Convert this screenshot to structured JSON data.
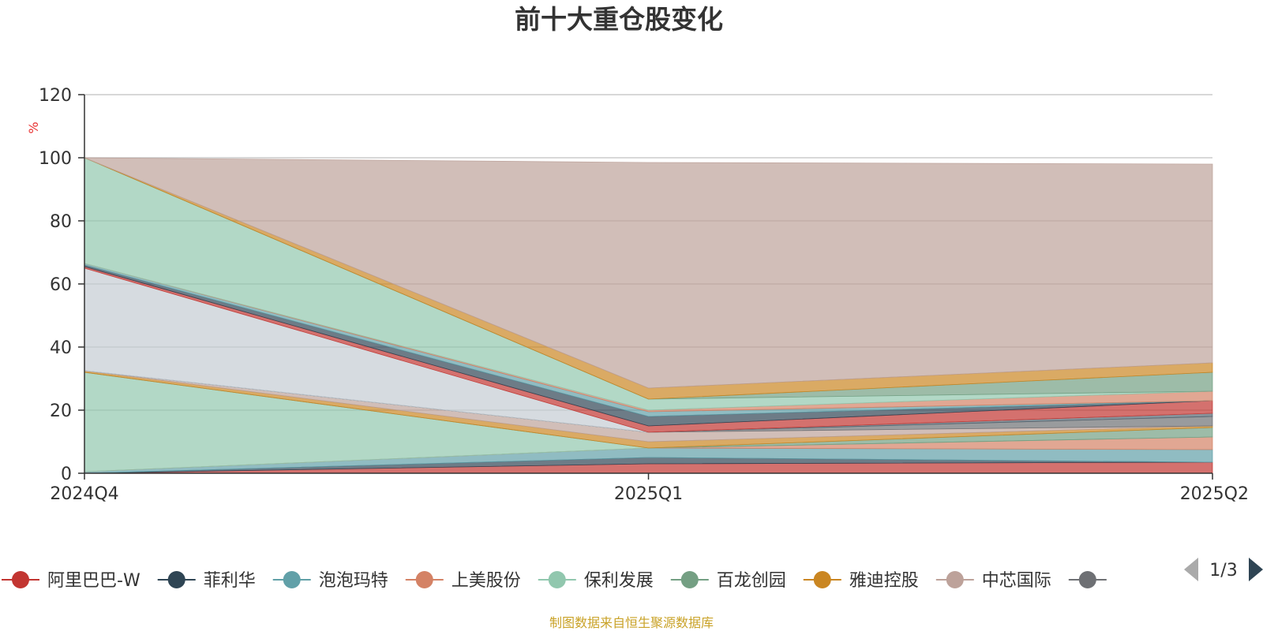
{
  "chart_data": {
    "type": "area",
    "stacked": true,
    "title": "前十大重仓股变化",
    "ylabel": "%",
    "ylim": [
      0,
      120
    ],
    "yticks": [
      0,
      20,
      40,
      60,
      80,
      100,
      120
    ],
    "categories": [
      "2024Q4",
      "2025Q1",
      "2025Q2"
    ],
    "grid": true,
    "series": [
      {
        "name": "阿里巴巴-W",
        "color": "#c23531",
        "values": [
          0,
          3,
          3.5
        ]
      },
      {
        "name": "菲利华",
        "color": "#2f4554",
        "values": [
          0,
          2,
          0
        ]
      },
      {
        "name": "泡泡玛特",
        "color": "#61a0a8",
        "values": [
          0.5,
          3,
          4
        ]
      },
      {
        "name": "上美股份",
        "color": "#d48265",
        "values": [
          0,
          0,
          4
        ]
      },
      {
        "name": "保利发展",
        "color": "#91c7ae",
        "values": [
          31.5,
          0,
          0
        ]
      },
      {
        "name": "百龙创园",
        "color": "#749f83",
        "values": [
          0,
          0,
          3
        ]
      },
      {
        "name": "雅迪控股",
        "color": "#ca8622",
        "values": [
          0.5,
          2,
          0.5
        ]
      },
      {
        "name": "中芯国际",
        "color": "#bda29a",
        "values": [
          0,
          3,
          0
        ]
      },
      {
        "name": "",
        "color": "#6e7074",
        "values": [
          0,
          0,
          3
        ]
      },
      {
        "name": "",
        "color": "#546570",
        "values": [
          0,
          0,
          1
        ]
      },
      {
        "name": "",
        "color": "#c4ccd3",
        "values": [
          32.5,
          0,
          0
        ]
      },
      {
        "name": "",
        "color": "#c23531",
        "values": [
          0.5,
          2,
          4
        ]
      },
      {
        "name": "",
        "color": "#2f4554",
        "values": [
          0.5,
          3,
          0
        ]
      },
      {
        "name": "",
        "color": "#61a0a8",
        "values": [
          0.5,
          1.5,
          0
        ]
      },
      {
        "name": "",
        "color": "#d48265",
        "values": [
          0,
          0.5,
          3
        ]
      },
      {
        "name": "",
        "color": "#91c7ae",
        "values": [
          33.5,
          3.5,
          0
        ]
      },
      {
        "name": "",
        "color": "#749f83",
        "values": [
          0,
          0,
          6
        ]
      },
      {
        "name": "",
        "color": "#ca8622",
        "values": [
          0,
          3.5,
          3
        ]
      },
      {
        "name": "",
        "color": "#bda29a",
        "values": [
          0,
          71.5,
          63
        ]
      }
    ]
  },
  "legend": {
    "items": [
      {
        "label": "阿里巴巴-W",
        "color": "#c23531"
      },
      {
        "label": "菲利华",
        "color": "#2f4554"
      },
      {
        "label": "泡泡玛特",
        "color": "#61a0a8"
      },
      {
        "label": "上美股份",
        "color": "#d48265"
      },
      {
        "label": "保利发展",
        "color": "#91c7ae"
      },
      {
        "label": "百龙创园",
        "color": "#749f83"
      },
      {
        "label": "雅迪控股",
        "color": "#ca8622"
      },
      {
        "label": "中芯国际",
        "color": "#bda29a"
      },
      {
        "label": "",
        "color": "#6e7074"
      }
    ],
    "page": "1/3"
  },
  "footer": {
    "source": "制图数据来自恒生聚源数据库"
  }
}
